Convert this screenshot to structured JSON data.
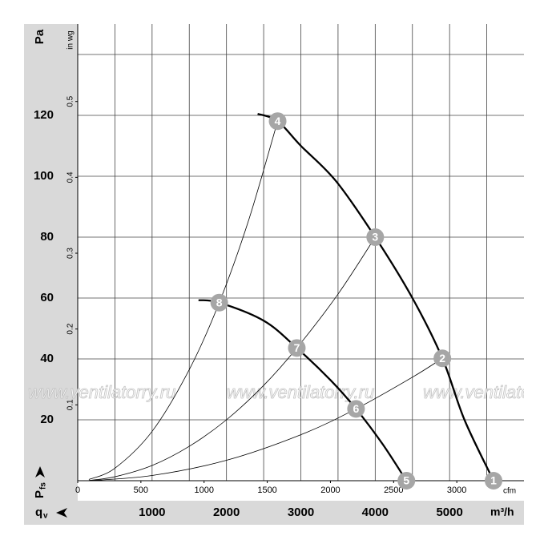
{
  "chart_data": {
    "type": "line",
    "xlim": [
      0,
      6000
    ],
    "ylim": [
      0,
      150
    ],
    "xticks": [
      1000,
      2000,
      3000,
      4000,
      5000
    ],
    "yticks": [
      20,
      40,
      60,
      80,
      100,
      120
    ],
    "xminor": [
      500,
      1500,
      2500,
      3500,
      4500,
      5500
    ],
    "yminor": [
      140
    ],
    "grid": true,
    "x_symbol": "q",
    "x_symbol_sub": "v",
    "x_unit": "m³/h",
    "y_symbol": "P",
    "y_symbol_sub": "fs",
    "y_unit": "Pa",
    "y2_unit": "in wg",
    "y2ticks": [
      {
        "value": 24.91,
        "label": "0.1"
      },
      {
        "value": 49.82,
        "label": "0.2"
      },
      {
        "value": 74.73,
        "label": "0.3"
      },
      {
        "value": 99.64,
        "label": "0.4"
      },
      {
        "value": 124.55,
        "label": "0.5"
      }
    ],
    "x2_unit": "cfm",
    "x2ticks": [
      {
        "value": 0,
        "label": "0"
      },
      {
        "value": 849.5,
        "label": "500"
      },
      {
        "value": 1699,
        "label": "1000"
      },
      {
        "value": 2548.5,
        "label": "1500"
      },
      {
        "value": 3398,
        "label": "2000"
      },
      {
        "value": 4247.5,
        "label": "2500"
      },
      {
        "value": 5097,
        "label": "3000"
      }
    ],
    "series": [
      {
        "color": "#000000",
        "style": "thick",
        "x": [
          2419,
          2688,
          3000,
          3473,
          4000,
          4500,
          4903,
          5200,
          5591
        ],
        "values": [
          120.5,
          118.1,
          110,
          98.4,
          80,
          60,
          40.2,
          20,
          0
        ]
      },
      {
        "color": "#000000",
        "style": "thick",
        "x": [
          1624,
          1903,
          2505,
          2946,
          3400,
          3742,
          4100,
          4419
        ],
        "values": [
          59.3,
          58.5,
          52.5,
          43.6,
          33,
          23.6,
          12,
          0
        ]
      },
      {
        "color": "#000000",
        "style": "thin",
        "x": [
          150,
          500,
          1000,
          1500,
          1903,
          2300,
          2688
        ],
        "values": [
          0.4,
          4.1,
          16.2,
          36.5,
          58.5,
          85.7,
          118.1
        ]
      },
      {
        "color": "#000000",
        "style": "thin",
        "x": [
          150,
          500,
          1000,
          1500,
          2000,
          2500,
          2946,
          3500,
          4000
        ],
        "values": [
          0.1,
          1.3,
          5,
          11.3,
          20,
          31.3,
          43.6,
          61.3,
          80
        ]
      },
      {
        "color": "#000000",
        "style": "thin",
        "x": [
          150,
          1000,
          2000,
          3000,
          3742,
          4500,
          4903
        ],
        "values": [
          0,
          1.7,
          6.7,
          15.1,
          23.6,
          34,
          40.2
        ]
      }
    ],
    "points": [
      {
        "label": "1",
        "x": 5591,
        "y": 0
      },
      {
        "label": "2",
        "x": 4903,
        "y": 40.2
      },
      {
        "label": "3",
        "x": 4000,
        "y": 80
      },
      {
        "label": "4",
        "x": 2688,
        "y": 118.1
      },
      {
        "label": "5",
        "x": 4419,
        "y": 0
      },
      {
        "label": "6",
        "x": 3742,
        "y": 23.6
      },
      {
        "label": "7",
        "x": 2946,
        "y": 43.6
      },
      {
        "label": "8",
        "x": 1903,
        "y": 58.5
      }
    ],
    "watermark": "www.ventilatorry.ru"
  }
}
